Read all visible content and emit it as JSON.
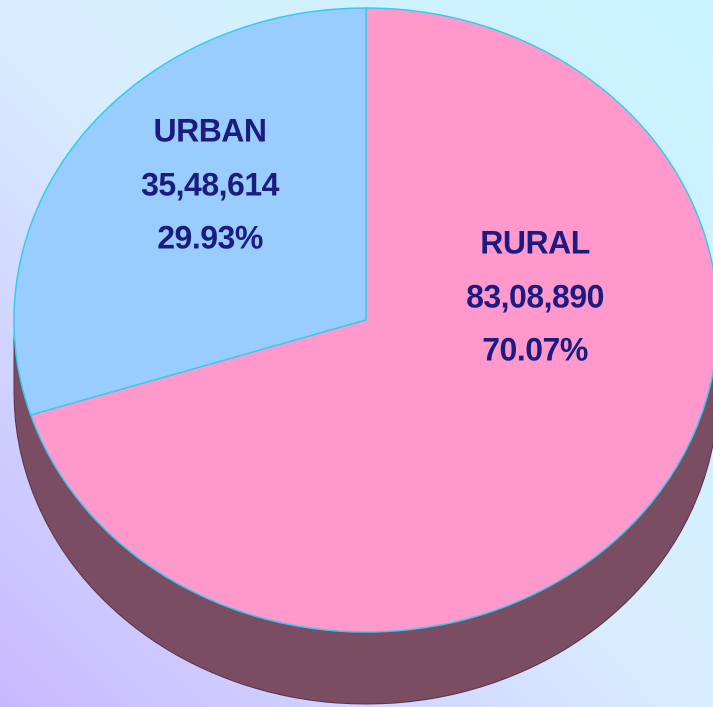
{
  "chart_data": {
    "type": "pie",
    "three_d": true,
    "categories": [
      "URBAN",
      "RURAL"
    ],
    "values": [
      3548614,
      8308890
    ],
    "value_labels": [
      "35,48,614",
      "83,08,890"
    ],
    "percents": [
      29.93,
      70.07
    ],
    "percent_labels": [
      "29.93%",
      "70.07%"
    ],
    "colors": [
      "#99ccff",
      "#ff99cc"
    ],
    "side_color": "#7b4d63",
    "edge_color": "#33ccee"
  }
}
